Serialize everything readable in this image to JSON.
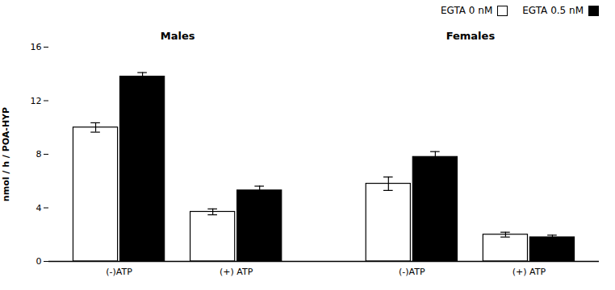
{
  "chart_data": {
    "type": "bar",
    "categories": [
      "(-)ATP",
      "(+) ATP",
      "(-)ATP",
      "(+) ATP"
    ],
    "groups": [
      "Males",
      "Males",
      "Females",
      "Females"
    ],
    "series": [
      {
        "name": "EGTA 0 nM",
        "color": "white",
        "values": [
          10.0,
          3.7,
          5.8,
          2.0
        ],
        "errors": [
          0.35,
          0.22,
          0.5,
          0.18
        ]
      },
      {
        "name": "EGTA 0.5 nM",
        "color": "black",
        "values": [
          13.8,
          5.3,
          7.8,
          1.8
        ],
        "errors": [
          0.3,
          0.32,
          0.4,
          0.16
        ]
      }
    ],
    "ylabel": "nmol / h / POA-HYP",
    "ylim": [
      0,
      16
    ],
    "yticks": [
      0,
      4,
      8,
      12,
      16
    ],
    "grid": false,
    "legend": "upper right"
  }
}
